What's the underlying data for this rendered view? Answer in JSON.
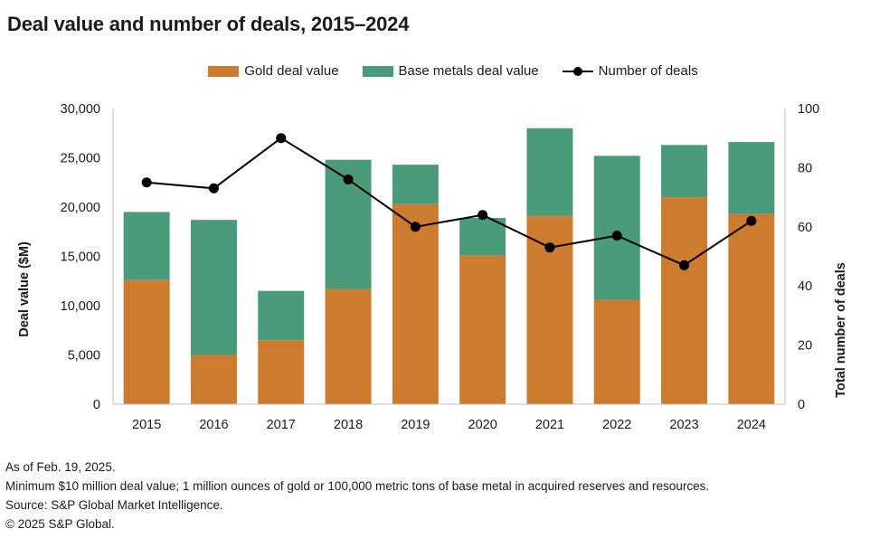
{
  "chart_data": {
    "type": "bar",
    "title": "Deal value and number of deals, 2015–2024",
    "categories": [
      "2015",
      "2016",
      "2017",
      "2018",
      "2019",
      "2020",
      "2021",
      "2022",
      "2023",
      "2024"
    ],
    "series": [
      {
        "name": "Gold deal value",
        "kind": "stacked-bar",
        "axis": "left",
        "color": "#cd7b2e",
        "values": [
          12600,
          5000,
          6500,
          11700,
          20300,
          15100,
          19100,
          10600,
          21000,
          19300
        ]
      },
      {
        "name": "Base metals deal value",
        "kind": "stacked-bar",
        "axis": "left",
        "color": "#4a9b7a",
        "values": [
          6900,
          13700,
          5000,
          13100,
          4000,
          3800,
          8900,
          14600,
          5300,
          7300
        ]
      },
      {
        "name": "Number of deals",
        "kind": "line",
        "axis": "right",
        "color": "#000000",
        "values": [
          75,
          73,
          90,
          76,
          60,
          64,
          53,
          57,
          47,
          62
        ]
      }
    ],
    "ylabel": "Deal value ($M)",
    "y2label": "Total number of deals",
    "ylim": [
      0,
      30000
    ],
    "y2lim": [
      0,
      100
    ],
    "yticks": [
      "0",
      "5,000",
      "10,000",
      "15,000",
      "20,000",
      "25,000",
      "30,000"
    ],
    "y2ticks": [
      "0",
      "20",
      "40",
      "60",
      "80",
      "100"
    ],
    "grid": false,
    "legend_position": "top-center"
  },
  "notes": [
    "As of Feb. 19, 2025.",
    "Minimum $10 million deal value; 1 million ounces of gold or 100,000 metric tons of base metal in acquired reserves and resources.",
    "Source: S&P Global Market Intelligence.",
    "© 2025 S&P Global."
  ]
}
